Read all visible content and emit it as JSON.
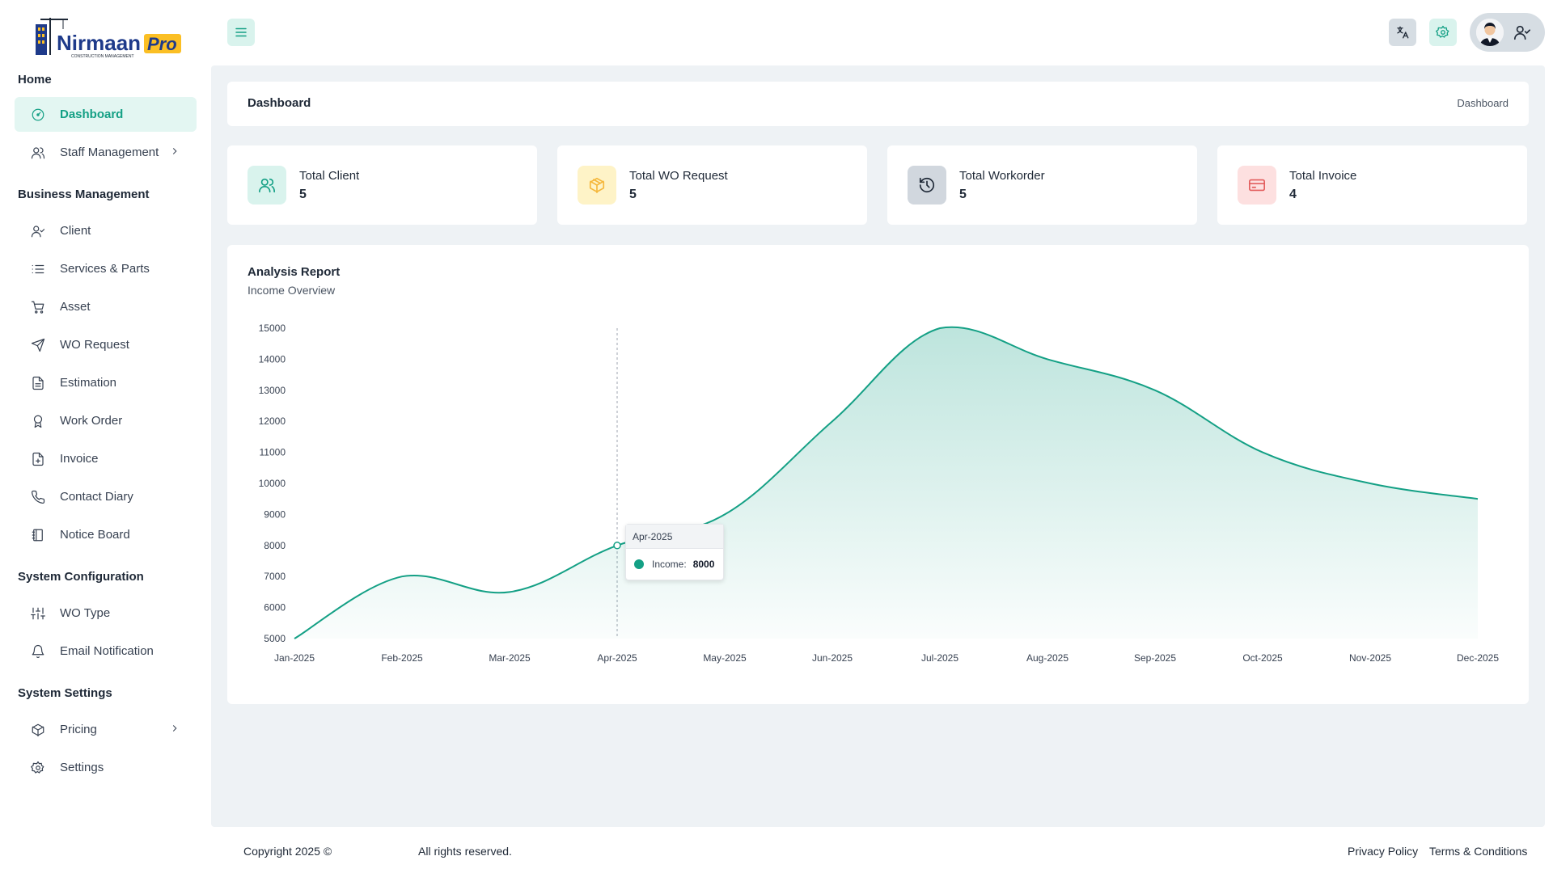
{
  "brand": {
    "name_part1": "Nirmaan",
    "name_part2": "Pro",
    "tagline": "CONSTRUCTION MANAGEMENT"
  },
  "colors": {
    "accent": "#14a085",
    "accent_light": "#e3f6f2",
    "content_bg": "#eef2f5"
  },
  "sidebar": {
    "sections": [
      {
        "title": "Home"
      },
      {
        "title": "Business Management"
      },
      {
        "title": "System Configuration"
      },
      {
        "title": "System Settings"
      }
    ],
    "items": [
      {
        "label": "Dashboard",
        "icon": "dashboard-icon"
      },
      {
        "label": "Staff Management",
        "icon": "users-icon"
      },
      {
        "label": "Client",
        "icon": "user-check-icon"
      },
      {
        "label": "Services & Parts",
        "icon": "list-icon"
      },
      {
        "label": "Asset",
        "icon": "cart-icon"
      },
      {
        "label": "WO Request",
        "icon": "send-icon"
      },
      {
        "label": "Estimation",
        "icon": "file-text-icon"
      },
      {
        "label": "Work Order",
        "icon": "award-icon"
      },
      {
        "label": "Invoice",
        "icon": "file-plus-icon"
      },
      {
        "label": "Contact Diary",
        "icon": "phone-icon"
      },
      {
        "label": "Notice Board",
        "icon": "notebook-icon"
      },
      {
        "label": "WO Type",
        "icon": "sliders-icon"
      },
      {
        "label": "Email Notification",
        "icon": "bell-icon"
      },
      {
        "label": "Pricing",
        "icon": "package-icon"
      },
      {
        "label": "Settings",
        "icon": "gear-icon"
      }
    ]
  },
  "page": {
    "title": "Dashboard",
    "breadcrumb": "Dashboard"
  },
  "stats": [
    {
      "label": "Total Client",
      "value": "5",
      "icon": "users-icon"
    },
    {
      "label": "Total WO Request",
      "value": "5",
      "icon": "box-icon"
    },
    {
      "label": "Total Workorder",
      "value": "5",
      "icon": "history-icon"
    },
    {
      "label": "Total Invoice",
      "value": "4",
      "icon": "credit-card-icon"
    }
  ],
  "analysis": {
    "title": "Analysis Report",
    "subtitle": "Income Overview"
  },
  "chart_data": {
    "type": "area",
    "categories": [
      "Jan-2025",
      "Feb-2025",
      "Mar-2025",
      "Apr-2025",
      "May-2025",
      "Jun-2025",
      "Jul-2025",
      "Aug-2025",
      "Sep-2025",
      "Oct-2025",
      "Nov-2025",
      "Dec-2025"
    ],
    "series": [
      {
        "name": "Income",
        "values": [
          5000,
          7000,
          6500,
          8000,
          9000,
          12000,
          15000,
          14000,
          13000,
          11000,
          10000,
          9500
        ]
      }
    ],
    "yticks": [
      5000,
      6000,
      7000,
      8000,
      9000,
      10000,
      11000,
      12000,
      13000,
      14000,
      15000
    ],
    "ylim": [
      5000,
      15000
    ],
    "grid": false,
    "tooltip": {
      "category": "Apr-2025",
      "series": "Income:",
      "value": "8000"
    }
  },
  "footer": {
    "copyright": "Copyright 2025 ©",
    "rights": "All rights reserved.",
    "privacy": "Privacy Policy",
    "terms": "Terms & Conditions"
  }
}
